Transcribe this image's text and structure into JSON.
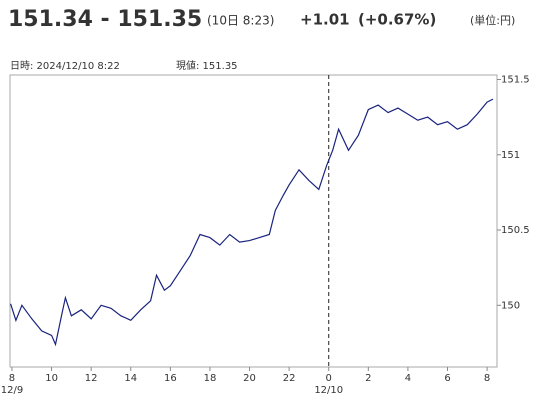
{
  "chart_data": {
    "type": "line",
    "price": "151.34 - 151.35",
    "time": "(10日 8:23)",
    "change": "+1.01",
    "change_pct": "(+0.67%)",
    "unit": "(単位:円)",
    "datetime": "日時: 2024/12/10  8:22",
    "current": "現値: 151.35",
    "color": "#1a237e",
    "change_color": "#d1441e",
    "x": [
      7.93,
      8.2,
      8.5,
      9,
      9.5,
      10,
      10.2,
      10.5,
      10.7,
      11,
      11.5,
      12,
      12.5,
      13,
      13.5,
      14,
      14.5,
      15,
      15.3,
      15.7,
      16,
      16.5,
      17,
      17.5,
      18,
      18.5,
      19,
      19.5,
      20,
      20.5,
      21,
      21.3,
      21.7,
      22,
      22.5,
      23,
      23.5,
      23.9,
      24.2,
      24.5,
      25,
      25.5,
      26,
      26.5,
      27,
      27.5,
      28,
      28.5,
      29,
      29.5,
      30,
      30.5,
      31,
      31.5,
      32,
      32.3
    ],
    "values": [
      150.01,
      149.9,
      150.0,
      149.91,
      149.83,
      149.8,
      149.74,
      149.93,
      150.05,
      149.93,
      149.97,
      149.91,
      150.0,
      149.98,
      149.93,
      149.9,
      149.97,
      150.03,
      150.2,
      150.1,
      150.13,
      150.23,
      150.33,
      150.47,
      150.45,
      150.4,
      150.47,
      150.42,
      150.43,
      150.45,
      150.47,
      150.63,
      150.73,
      150.8,
      150.9,
      150.83,
      150.77,
      150.93,
      151.03,
      151.17,
      151.03,
      151.13,
      151.3,
      151.33,
      151.28,
      151.31,
      151.27,
      151.23,
      151.25,
      151.2,
      151.22,
      151.17,
      151.2,
      151.27,
      151.35,
      151.37
    ],
    "xlim": [
      7.9,
      32.5
    ],
    "ylim": [
      149.59,
      151.53
    ],
    "xticks": [
      8,
      10,
      12,
      14,
      16,
      18,
      20,
      22,
      {
        "value": 24,
        "label": "0"
      },
      {
        "value": 26,
        "label": "2"
      },
      {
        "value": 28,
        "label": "4"
      },
      {
        "value": 30,
        "label": "6"
      },
      {
        "value": 32,
        "label": "8"
      }
    ],
    "yticks": [
      150,
      150.5,
      151,
      151.5
    ],
    "day_labels": [
      {
        "value": 8,
        "label": "12/9"
      },
      {
        "value": 24,
        "label": "12/10"
      }
    ]
  }
}
